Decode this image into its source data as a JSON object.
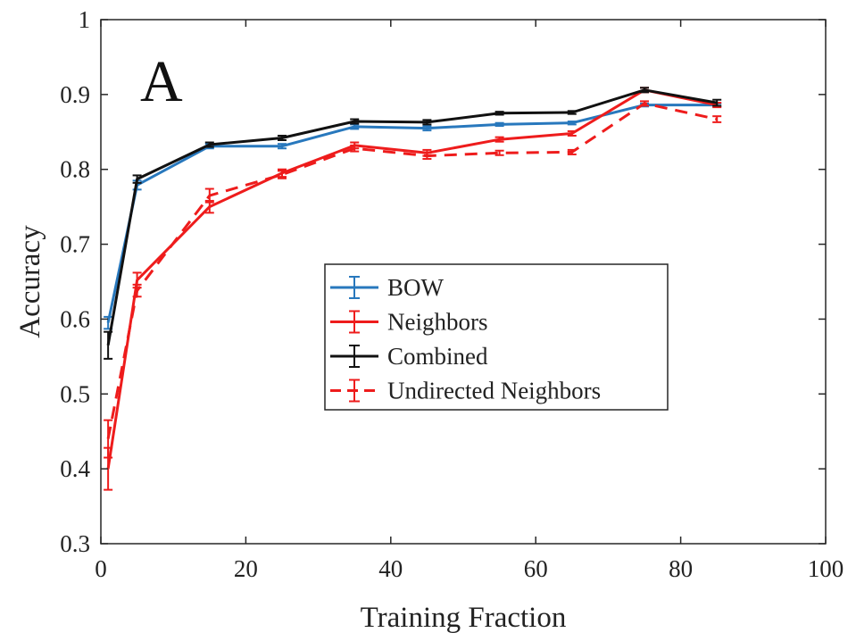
{
  "chart_data": {
    "type": "line",
    "panel_label": "A",
    "xlabel": "Training Fraction",
    "ylabel": "Accuracy",
    "xlim": [
      0,
      100
    ],
    "ylim": [
      0.3,
      1.0
    ],
    "xticks": [
      0,
      20,
      40,
      60,
      80,
      100
    ],
    "xtick_labels": [
      "0",
      "20",
      "40",
      "60",
      "80",
      "100"
    ],
    "yticks": [
      0.3,
      0.4,
      0.5,
      0.6,
      0.7,
      0.8,
      0.9,
      1.0
    ],
    "ytick_labels": [
      "0.3",
      "0.4",
      "0.5",
      "0.6",
      "0.7",
      "0.8",
      "0.9",
      "1"
    ],
    "grid": false,
    "legend_position": "center",
    "x": [
      1,
      5,
      15,
      25,
      35,
      45,
      55,
      65,
      75,
      85
    ],
    "series": [
      {
        "name": "BOW",
        "color": "#2878bd",
        "dashed": false,
        "values": [
          0.595,
          0.779,
          0.831,
          0.831,
          0.857,
          0.855,
          0.86,
          0.862,
          0.886,
          0.886
        ],
        "errors": [
          0.008,
          0.006,
          0.003,
          0.003,
          0.003,
          0.003,
          0.002,
          0.002,
          0.002,
          0.002
        ]
      },
      {
        "name": "Neighbors",
        "color": "#ee1c1c",
        "dashed": false,
        "values": [
          0.4,
          0.652,
          0.75,
          0.795,
          0.832,
          0.822,
          0.84,
          0.848,
          0.906,
          0.886
        ],
        "errors": [
          0.028,
          0.01,
          0.008,
          0.005,
          0.004,
          0.004,
          0.003,
          0.003,
          0.003,
          0.003
        ]
      },
      {
        "name": "Combined",
        "color": "#111111",
        "dashed": false,
        "values": [
          0.565,
          0.787,
          0.833,
          0.842,
          0.864,
          0.863,
          0.875,
          0.876,
          0.906,
          0.889
        ],
        "errors": [
          0.018,
          0.005,
          0.003,
          0.003,
          0.003,
          0.003,
          0.002,
          0.002,
          0.003,
          0.004
        ]
      },
      {
        "name": "Undirected Neighbors",
        "color": "#ee1c1c",
        "dashed": true,
        "values": [
          0.44,
          0.638,
          0.765,
          0.793,
          0.828,
          0.818,
          0.822,
          0.823,
          0.888,
          0.867
        ],
        "errors": [
          0.025,
          0.008,
          0.009,
          0.005,
          0.004,
          0.004,
          0.003,
          0.003,
          0.003,
          0.004
        ]
      }
    ]
  }
}
